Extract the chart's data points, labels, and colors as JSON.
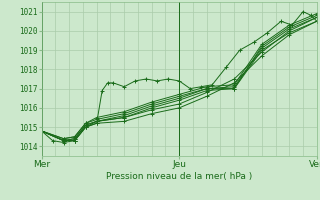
{
  "bg_color": "#cce8cc",
  "grid_color_major": "#88bb88",
  "grid_color_minor": "#aaccaa",
  "line_color": "#1a6b1a",
  "xlabel": "Pression niveau de la mer( hPa )",
  "xtick_labels": [
    "Mer",
    "Jeu",
    "Ven"
  ],
  "ytick_vals": [
    1014,
    1015,
    1016,
    1017,
    1018,
    1019,
    1020,
    1021
  ],
  "ylim": [
    1013.5,
    1021.5
  ],
  "xlim": [
    0.0,
    1.0
  ],
  "n_minor_vlines": 20,
  "day_vlines": [
    0.0,
    0.5,
    1.0
  ],
  "series": [
    [
      0.0,
      1014.8,
      0.04,
      1014.3,
      0.08,
      1014.2,
      0.12,
      1014.3,
      0.16,
      1015.0,
      0.2,
      1015.2,
      0.22,
      1016.9,
      0.24,
      1017.3,
      0.26,
      1017.3,
      0.3,
      1017.1,
      0.34,
      1017.4,
      0.38,
      1017.5,
      0.42,
      1017.4,
      0.46,
      1017.5,
      0.5,
      1017.4,
      0.54,
      1017.0,
      0.58,
      1017.1,
      0.62,
      1017.2,
      0.67,
      1018.1,
      0.72,
      1019.0,
      0.77,
      1019.4,
      0.82,
      1019.9,
      0.87,
      1020.5,
      0.91,
      1020.3,
      0.95,
      1021.0,
      0.98,
      1020.8,
      1.0,
      1020.5
    ],
    [
      0.0,
      1014.8,
      0.08,
      1014.3,
      0.12,
      1014.3,
      0.16,
      1015.0,
      0.2,
      1015.2,
      0.3,
      1015.3,
      0.4,
      1015.7,
      0.5,
      1016.0,
      0.6,
      1016.6,
      0.7,
      1017.3,
      0.8,
      1018.7,
      0.9,
      1019.8,
      1.0,
      1020.5
    ],
    [
      0.0,
      1014.8,
      0.08,
      1014.3,
      0.12,
      1014.3,
      0.16,
      1015.0,
      0.2,
      1015.3,
      0.3,
      1015.5,
      0.4,
      1015.9,
      0.5,
      1016.2,
      0.6,
      1016.8,
      0.7,
      1017.5,
      0.8,
      1018.9,
      0.9,
      1020.0,
      1.0,
      1020.7
    ],
    [
      0.0,
      1014.8,
      0.08,
      1014.3,
      0.12,
      1014.4,
      0.16,
      1015.1,
      0.2,
      1015.3,
      0.3,
      1015.5,
      0.4,
      1016.0,
      0.5,
      1016.4,
      0.6,
      1016.9,
      0.7,
      1017.0,
      0.8,
      1019.0,
      0.9,
      1019.9,
      1.0,
      1020.5
    ],
    [
      0.0,
      1014.8,
      0.08,
      1014.3,
      0.12,
      1014.4,
      0.16,
      1015.1,
      0.2,
      1015.3,
      0.3,
      1015.6,
      0.4,
      1016.1,
      0.5,
      1016.5,
      0.6,
      1017.0,
      0.7,
      1017.1,
      0.8,
      1019.1,
      0.9,
      1020.1,
      1.0,
      1020.7
    ],
    [
      0.0,
      1014.8,
      0.08,
      1014.4,
      0.12,
      1014.5,
      0.16,
      1015.2,
      0.2,
      1015.4,
      0.3,
      1015.7,
      0.4,
      1016.2,
      0.5,
      1016.6,
      0.6,
      1017.0,
      0.7,
      1017.0,
      0.8,
      1019.2,
      0.9,
      1020.2,
      1.0,
      1020.8
    ],
    [
      0.0,
      1014.8,
      0.08,
      1014.4,
      0.12,
      1014.5,
      0.16,
      1015.2,
      0.2,
      1015.5,
      0.3,
      1015.8,
      0.4,
      1016.3,
      0.5,
      1016.7,
      0.6,
      1017.1,
      0.7,
      1017.2,
      0.8,
      1019.3,
      0.9,
      1020.3,
      1.0,
      1020.9
    ]
  ]
}
